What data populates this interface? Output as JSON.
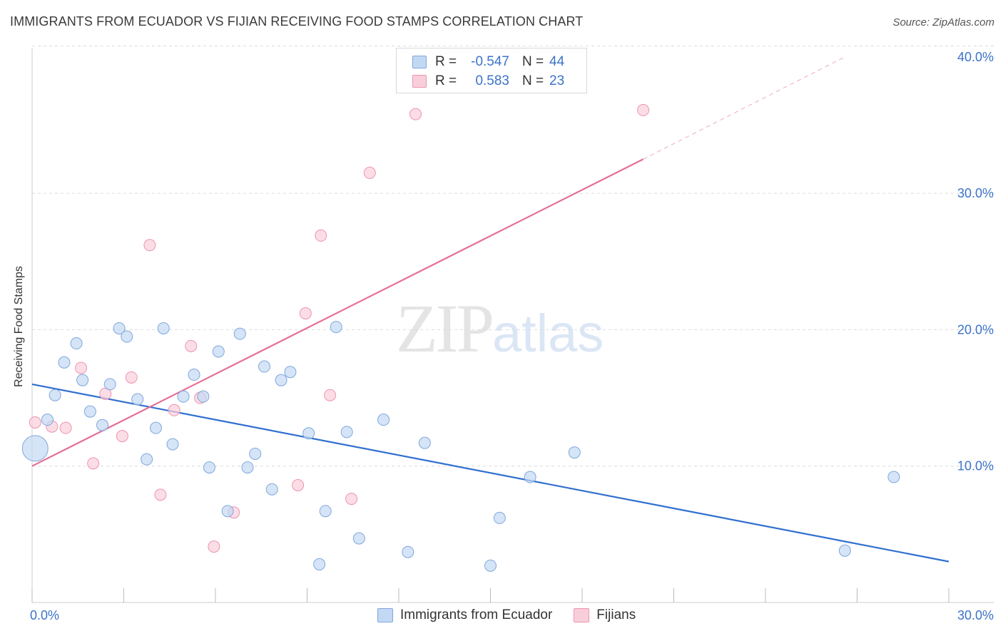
{
  "header": {
    "title": "IMMIGRANTS FROM ECUADOR VS FIJIAN RECEIVING FOOD STAMPS CORRELATION CHART",
    "source": "Source: ZipAtlas.com"
  },
  "watermark": {
    "zip": "ZIP",
    "atlas": "atlas"
  },
  "legend": {
    "rows": [
      {
        "r_label": "R =",
        "r_value": "-0.547",
        "n_label": "N =",
        "n_value": "44"
      },
      {
        "r_label": "R =",
        "r_value": "0.583",
        "n_label": "N =",
        "n_value": "23"
      }
    ]
  },
  "bottom_legend": {
    "series1": "Immigrants from Ecuador",
    "series2": "Fijians"
  },
  "colors": {
    "blue_fill": "#c3d8f3",
    "blue_stroke": "#7fa7dd",
    "blue_line": "#2f6fcf",
    "pink_fill": "#f9cedb",
    "pink_stroke": "#ee93ad",
    "pink_line": "#e56f93",
    "axis_label": "#3b73c8"
  },
  "chart_data": {
    "type": "scatter",
    "title": "IMMIGRANTS FROM ECUADOR VS FIJIAN RECEIVING FOOD STAMPS CORRELATION CHART",
    "xlabel": "",
    "ylabel": "Receiving Food Stamps",
    "xlim": [
      0,
      30
    ],
    "ylim": [
      0,
      40
    ],
    "x_tick_labels": [
      "0.0%",
      "30.0%"
    ],
    "y_tick_labels": [
      "10.0%",
      "20.0%",
      "30.0%",
      "40.0%"
    ],
    "y_ticks": [
      10,
      20,
      30,
      40
    ],
    "grid": true,
    "legend_placement": "top-center",
    "series": [
      {
        "name": "Immigrants from Ecuador",
        "points": [
          [
            0.1,
            11.3,
            3
          ],
          [
            0.5,
            13.4,
            1
          ],
          [
            0.75,
            15.2,
            1
          ],
          [
            1.05,
            17.6,
            1
          ],
          [
            1.45,
            19.0,
            1
          ],
          [
            1.65,
            16.3,
            1
          ],
          [
            1.9,
            14.0,
            1
          ],
          [
            2.3,
            13.0,
            1
          ],
          [
            2.55,
            16.0,
            1
          ],
          [
            2.85,
            20.1,
            1
          ],
          [
            3.1,
            19.5,
            1
          ],
          [
            3.45,
            14.9,
            1
          ],
          [
            3.75,
            10.5,
            1
          ],
          [
            4.05,
            12.8,
            1
          ],
          [
            4.3,
            20.1,
            1
          ],
          [
            4.6,
            11.6,
            1
          ],
          [
            4.95,
            15.1,
            1
          ],
          [
            5.3,
            16.7,
            1
          ],
          [
            5.6,
            15.1,
            1
          ],
          [
            5.8,
            9.9,
            1
          ],
          [
            6.1,
            18.4,
            1
          ],
          [
            6.4,
            6.7,
            1
          ],
          [
            6.8,
            19.7,
            1
          ],
          [
            7.05,
            9.9,
            1
          ],
          [
            7.3,
            10.9,
            1
          ],
          [
            7.6,
            17.3,
            1
          ],
          [
            7.85,
            8.3,
            1
          ],
          [
            8.15,
            16.3,
            1
          ],
          [
            8.45,
            16.9,
            1
          ],
          [
            9.05,
            12.4,
            1
          ],
          [
            9.4,
            2.8,
            1
          ],
          [
            9.6,
            6.7,
            1
          ],
          [
            9.95,
            20.2,
            1
          ],
          [
            10.3,
            12.5,
            1
          ],
          [
            10.7,
            4.7,
            1
          ],
          [
            11.5,
            13.4,
            1
          ],
          [
            12.3,
            3.7,
            1
          ],
          [
            12.85,
            11.7,
            1
          ],
          [
            15.0,
            2.7,
            1
          ],
          [
            15.3,
            6.2,
            1
          ],
          [
            16.3,
            9.2,
            1
          ],
          [
            17.75,
            11.0,
            1
          ],
          [
            26.6,
            3.8,
            1
          ],
          [
            28.2,
            9.2,
            1
          ]
        ],
        "trendline": {
          "x": [
            0,
            30
          ],
          "y": [
            16.0,
            3.0
          ]
        }
      },
      {
        "name": "Fijians",
        "points": [
          [
            0.1,
            13.2,
            1
          ],
          [
            0.65,
            12.9,
            1
          ],
          [
            1.1,
            12.8,
            1
          ],
          [
            1.6,
            17.2,
            1
          ],
          [
            2.0,
            10.2,
            1
          ],
          [
            2.4,
            15.3,
            1
          ],
          [
            2.95,
            12.2,
            1
          ],
          [
            3.25,
            16.5,
            1
          ],
          [
            3.85,
            26.2,
            1
          ],
          [
            4.2,
            7.9,
            1
          ],
          [
            4.65,
            14.1,
            1
          ],
          [
            5.2,
            18.8,
            1
          ],
          [
            5.5,
            15.0,
            1
          ],
          [
            5.95,
            4.1,
            1
          ],
          [
            6.6,
            6.6,
            1
          ],
          [
            8.7,
            8.6,
            1
          ],
          [
            8.95,
            21.2,
            1
          ],
          [
            9.45,
            26.9,
            1
          ],
          [
            9.75,
            15.2,
            1
          ],
          [
            10.45,
            7.6,
            1
          ],
          [
            11.05,
            31.5,
            1
          ],
          [
            12.55,
            35.8,
            1
          ],
          [
            20.0,
            36.1,
            1
          ]
        ],
        "trendline": {
          "x": [
            0,
            20.0
          ],
          "y": [
            10.0,
            32.5
          ]
        },
        "trendline_extension": {
          "x": [
            20.0,
            26.6
          ],
          "y": [
            32.5,
            40.0
          ]
        }
      }
    ]
  }
}
